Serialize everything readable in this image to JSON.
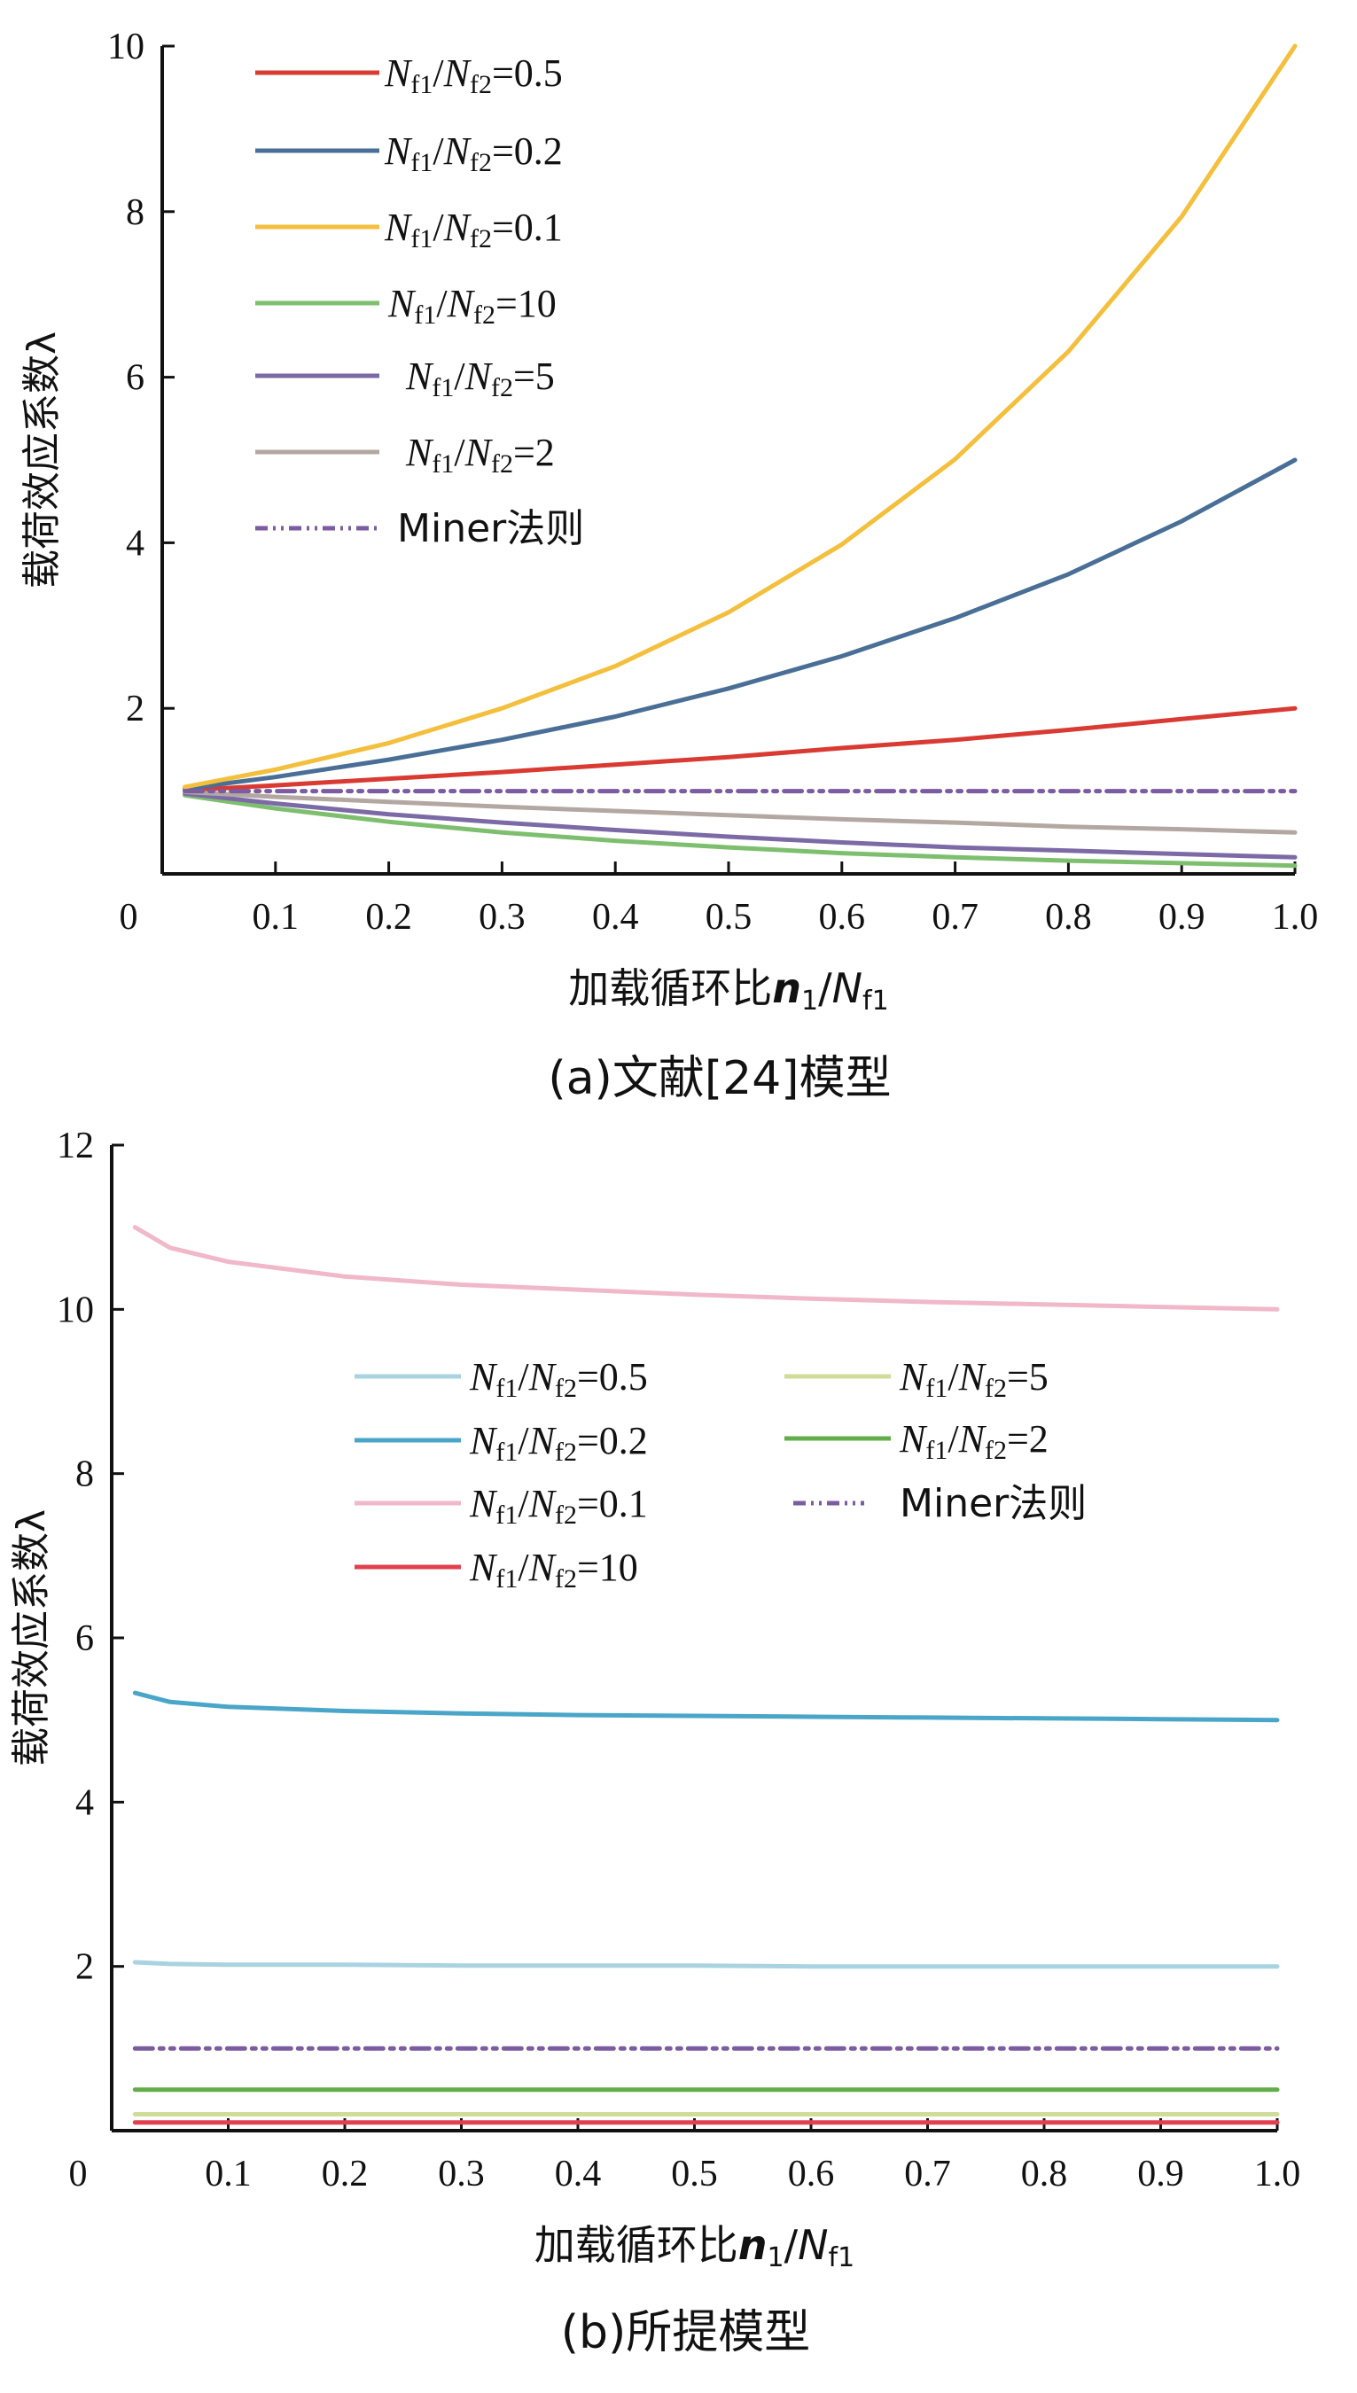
{
  "chart_data": [
    {
      "type": "line",
      "caption": "(a)文献[24]模型",
      "xlabel": "加载循环比n1/Nf1",
      "ylabel": "载荷效应系数λ",
      "origin_label": "0",
      "xlim": [
        0,
        1.0
      ],
      "ylim": [
        0,
        10
      ],
      "xticks": [
        "0.1",
        "0.2",
        "0.3",
        "0.4",
        "0.5",
        "0.6",
        "0.7",
        "0.8",
        "0.9",
        "1.0"
      ],
      "yticks": [
        "2",
        "4",
        "6",
        "8",
        "10"
      ],
      "legend_position": "top-left",
      "x": [
        0.02,
        0.1,
        0.2,
        0.3,
        0.4,
        0.5,
        0.6,
        0.7,
        0.8,
        0.9,
        1.0
      ],
      "series": [
        {
          "name": "Nf1/Nf2=0.5",
          "color": "#d93a32",
          "style": "solid",
          "values": [
            1.01,
            1.07,
            1.15,
            1.23,
            1.32,
            1.41,
            1.52,
            1.62,
            1.74,
            1.87,
            2.0
          ]
        },
        {
          "name": "Nf1/Nf2=0.2",
          "color": "#4a6f96",
          "style": "solid",
          "values": [
            1.03,
            1.17,
            1.38,
            1.62,
            1.9,
            2.24,
            2.63,
            3.09,
            3.62,
            4.26,
            5.0
          ]
        },
        {
          "name": "Nf1/Nf2=0.1",
          "color": "#f3bf3c",
          "style": "solid",
          "values": [
            1.05,
            1.26,
            1.58,
            2.0,
            2.51,
            3.16,
            3.98,
            5.01,
            6.31,
            7.94,
            10.0
          ]
        },
        {
          "name": "Nf1/Nf2=10",
          "color": "#7dbf6e",
          "style": "solid",
          "values": [
            0.95,
            0.79,
            0.63,
            0.5,
            0.4,
            0.32,
            0.25,
            0.2,
            0.16,
            0.13,
            0.1
          ]
        },
        {
          "name": "Nf1/Nf2=5",
          "color": "#7b6aa6",
          "style": "solid",
          "values": [
            0.97,
            0.85,
            0.72,
            0.62,
            0.53,
            0.45,
            0.38,
            0.32,
            0.28,
            0.24,
            0.2
          ]
        },
        {
          "name": "Nf1/Nf2=2",
          "color": "#b3a7a2",
          "style": "solid",
          "values": [
            0.99,
            0.93,
            0.87,
            0.81,
            0.76,
            0.71,
            0.66,
            0.62,
            0.57,
            0.54,
            0.5
          ]
        },
        {
          "name": "Miner法则",
          "color": "#7b5ca0",
          "style": "dashdot",
          "values": [
            1.0,
            1.0,
            1.0,
            1.0,
            1.0,
            1.0,
            1.0,
            1.0,
            1.0,
            1.0,
            1.0
          ]
        }
      ]
    },
    {
      "type": "line",
      "caption": "(b)所提模型",
      "xlabel": "加载循环比n1/Nf1",
      "ylabel": "载荷效应系数λ",
      "origin_label": "0",
      "xlim": [
        0,
        1.0
      ],
      "ylim": [
        0,
        12
      ],
      "xticks": [
        "0.1",
        "0.2",
        "0.3",
        "0.4",
        "0.5",
        "0.6",
        "0.7",
        "0.8",
        "0.9",
        "1.0"
      ],
      "yticks": [
        "2",
        "4",
        "6",
        "8",
        "10",
        "12"
      ],
      "legend_position": "upper-center",
      "x": [
        0.02,
        0.05,
        0.1,
        0.2,
        0.3,
        0.4,
        0.5,
        0.6,
        0.7,
        0.8,
        0.9,
        1.0
      ],
      "series": [
        {
          "name": "Nf1/Nf2=0.5",
          "color": "#a9d3e0",
          "style": "solid",
          "values": [
            2.05,
            2.03,
            2.02,
            2.02,
            2.01,
            2.01,
            2.01,
            2.0,
            2.0,
            2.0,
            2.0,
            2.0
          ]
        },
        {
          "name": "Nf1/Nf2=0.2",
          "color": "#4aa6c8",
          "style": "solid",
          "values": [
            5.33,
            5.22,
            5.16,
            5.11,
            5.08,
            5.06,
            5.05,
            5.04,
            5.03,
            5.02,
            5.01,
            5.0
          ]
        },
        {
          "name": "Nf1/Nf2=0.1",
          "color": "#f0b8c8",
          "style": "solid",
          "values": [
            11.0,
            10.75,
            10.58,
            10.4,
            10.3,
            10.24,
            10.18,
            10.13,
            10.09,
            10.06,
            10.03,
            10.0
          ]
        },
        {
          "name": "Nf1/Nf2=10",
          "color": "#e0404f",
          "style": "solid",
          "values": [
            0.1,
            0.1,
            0.1,
            0.1,
            0.1,
            0.1,
            0.1,
            0.1,
            0.1,
            0.1,
            0.1,
            0.1
          ]
        },
        {
          "name": "Nf1/Nf2=5",
          "color": "#cfdc9a",
          "style": "solid",
          "values": [
            0.2,
            0.2,
            0.2,
            0.2,
            0.2,
            0.2,
            0.2,
            0.2,
            0.2,
            0.2,
            0.2,
            0.2
          ]
        },
        {
          "name": "Nf1/Nf2=2",
          "color": "#62ad4a",
          "style": "solid",
          "values": [
            0.5,
            0.5,
            0.5,
            0.5,
            0.5,
            0.5,
            0.5,
            0.5,
            0.5,
            0.5,
            0.5,
            0.5
          ]
        },
        {
          "name": "Miner法则",
          "color": "#7b5ca0",
          "style": "dashdot",
          "values": [
            1.0,
            1.0,
            1.0,
            1.0,
            1.0,
            1.0,
            1.0,
            1.0,
            1.0,
            1.0,
            1.0,
            1.0
          ]
        }
      ]
    }
  ]
}
